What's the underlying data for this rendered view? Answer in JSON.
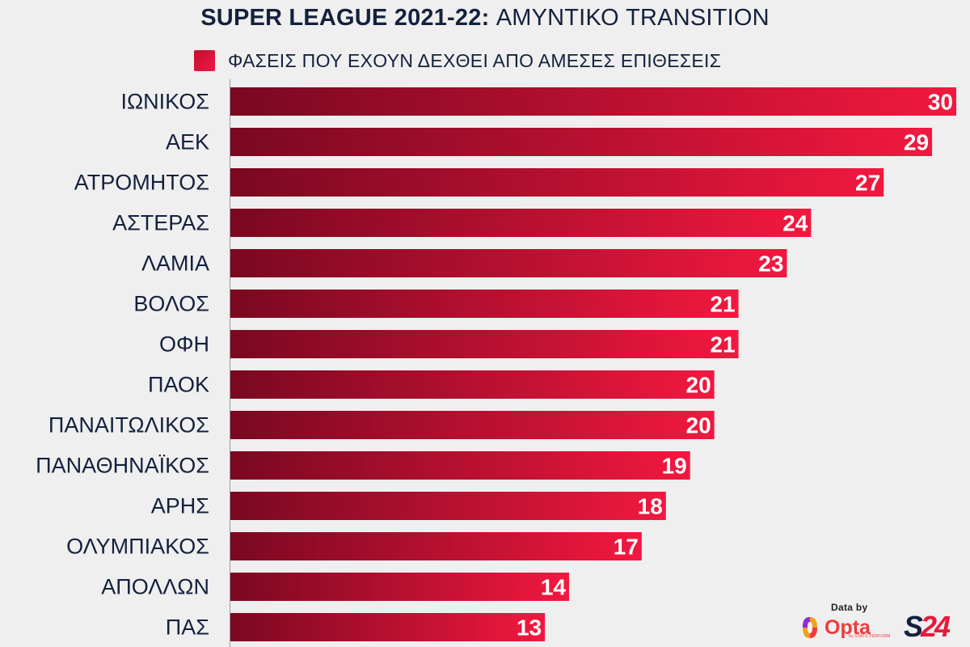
{
  "header": {
    "title_bold": "SUPER LEAGUE 2021-22:",
    "title_light": "ΑΜΥΝΤΙΚΟ TRANSITION"
  },
  "legend": {
    "label": "ΦΑΣΕΙΣ ΠΟΥ ΕΧΟΥΝ ΔΕΧΘΕΙ ΑΠΟ ΑΜΕΣΕΣ ΕΠΙΘΕΣΕΙΣ"
  },
  "colors": {
    "bar_dark": "#7a0820",
    "bar_light": "#f2183f",
    "text_navy": "#14213d",
    "background": "#efefef"
  },
  "chart_data": {
    "type": "bar",
    "orientation": "horizontal",
    "title": "SUPER LEAGUE 2021-22: ΑΜΥΝΤΙΚΟ TRANSITION",
    "series_name": "ΦΑΣΕΙΣ ΠΟΥ ΕΧΟΥΝ ΔΕΧΘΕΙ ΑΠΟ ΑΜΕΣΕΣ ΕΠΙΘΕΣΕΙΣ",
    "categories": [
      "ΙΩΝΙΚΟΣ",
      "ΑΕΚ",
      "ΑΤΡΟΜΗΤΟΣ",
      "ΑΣΤΕΡΑΣ",
      "ΛΑΜΙΑ",
      "ΒΟΛΟΣ",
      "ΟΦΗ",
      "ΠΑΟΚ",
      "ΠΑΝΑΙΤΩΛΙΚΟΣ",
      "ΠΑΝΑΘΗΝΑΪΚΟΣ",
      "ΑΡΗΣ",
      "ΟΛΥΜΠΙΑΚΟΣ",
      "ΑΠΟΛΛΩΝ",
      "ΠΑΣ"
    ],
    "values": [
      30,
      29,
      27,
      24,
      23,
      21,
      21,
      20,
      20,
      19,
      18,
      17,
      14,
      13
    ],
    "xlim": [
      0,
      30
    ],
    "data_labels": true,
    "grid": false,
    "legend_position": "top"
  },
  "credits": {
    "data_by": "Data by",
    "opta_word": "Opta",
    "opta_sub": "by STATS PERFORM",
    "s24_part1": "S",
    "s24_part2": "24"
  }
}
